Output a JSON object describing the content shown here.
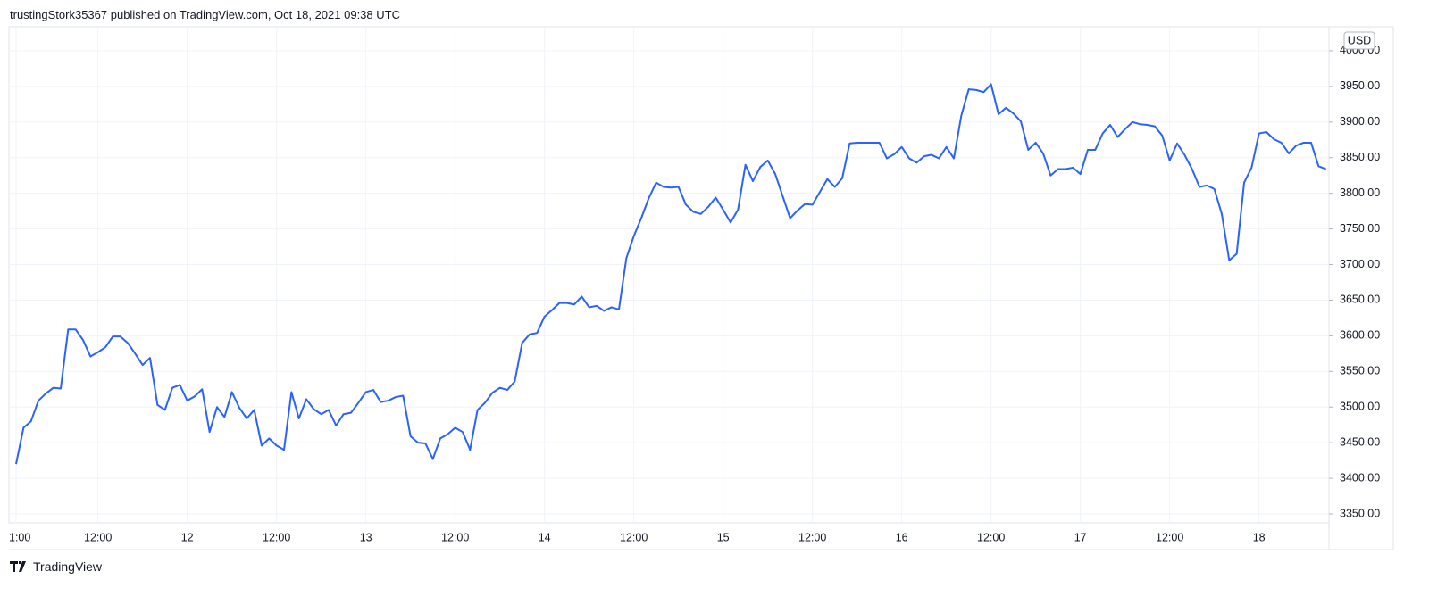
{
  "header": {
    "title": "trustingStork35367 published on TradingView.com, Oct 18, 2021 09:38 UTC"
  },
  "chart_data": {
    "type": "line",
    "unit": "USD",
    "color": "#2962ff",
    "grid": true,
    "categories": [
      "1:00",
      null,
      null,
      null,
      null,
      null,
      null,
      null,
      null,
      null,
      null,
      "12:00",
      null,
      null,
      null,
      null,
      null,
      null,
      null,
      null,
      null,
      null,
      null,
      "12",
      null,
      null,
      null,
      null,
      null,
      null,
      null,
      null,
      null,
      null,
      null,
      "12:00",
      null,
      null,
      null,
      null,
      null,
      null,
      null,
      null,
      null,
      null,
      null,
      "13",
      null,
      null,
      null,
      null,
      null,
      null,
      null,
      null,
      null,
      null,
      null,
      "12:00",
      null,
      null,
      null,
      null,
      null,
      null,
      null,
      null,
      null,
      null,
      null,
      "14",
      null,
      null,
      null,
      null,
      null,
      null,
      null,
      null,
      null,
      null,
      null,
      "12:00",
      null,
      null,
      null,
      null,
      null,
      null,
      null,
      null,
      null,
      null,
      null,
      "15",
      null,
      null,
      null,
      null,
      null,
      null,
      null,
      null,
      null,
      null,
      null,
      "12:00",
      null,
      null,
      null,
      null,
      null,
      null,
      null,
      null,
      null,
      null,
      null,
      "16",
      null,
      null,
      null,
      null,
      null,
      null,
      null,
      null,
      null,
      null,
      null,
      "12:00",
      null,
      null,
      null,
      null,
      null,
      null,
      null,
      null,
      null,
      null,
      null,
      "17",
      null,
      null,
      null,
      null,
      null,
      null,
      null,
      null,
      null,
      null,
      null,
      "12:00",
      null,
      null,
      null,
      null,
      null,
      null,
      null,
      null,
      null,
      null,
      null,
      "18",
      null,
      null,
      null,
      null,
      null,
      null,
      null,
      null,
      null
    ],
    "values": [
      3420,
      3471,
      3480,
      3509,
      3519,
      3527,
      3526,
      3609,
      3609,
      3594,
      3571,
      3577,
      3584,
      3599,
      3599,
      3590,
      3575,
      3559,
      3569,
      3503,
      3496,
      3527,
      3531,
      3509,
      3515,
      3525,
      3465,
      3500,
      3486,
      3521,
      3499,
      3484,
      3496,
      3446,
      3456,
      3446,
      3440,
      3521,
      3484,
      3511,
      3497,
      3490,
      3496,
      3474,
      3490,
      3492,
      3506,
      3521,
      3524,
      3507,
      3509,
      3514,
      3516,
      3459,
      3450,
      3449,
      3427,
      3456,
      3462,
      3471,
      3465,
      3440,
      3496,
      3506,
      3520,
      3527,
      3524,
      3536,
      3590,
      3602,
      3604,
      3627,
      3636,
      3646,
      3646,
      3644,
      3655,
      3640,
      3642,
      3635,
      3640,
      3637,
      3709,
      3740,
      3765,
      3793,
      3815,
      3809,
      3808,
      3809,
      3784,
      3774,
      3771,
      3781,
      3794,
      3777,
      3759,
      3777,
      3840,
      3817,
      3837,
      3846,
      3827,
      3796,
      3765,
      3776,
      3785,
      3784,
      3802,
      3820,
      3809,
      3821,
      3870,
      3871,
      3871,
      3871,
      3871,
      3849,
      3855,
      3865,
      3849,
      3843,
      3852,
      3854,
      3849,
      3865,
      3849,
      3909,
      3946,
      3945,
      3942,
      3953,
      3911,
      3920,
      3912,
      3901,
      3861,
      3871,
      3856,
      3825,
      3834,
      3834,
      3836,
      3827,
      3861,
      3861,
      3884,
      3896,
      3879,
      3890,
      3900,
      3897,
      3896,
      3894,
      3881,
      3846,
      3870,
      3854,
      3834,
      3809,
      3811,
      3806,
      3771,
      3706,
      3715,
      3815,
      3836,
      3884,
      3886,
      3876,
      3871,
      3856,
      3867,
      3871,
      3871,
      3838,
      3834
    ],
    "ylim": [
      3337.5,
      4033.75
    ],
    "yticks": [
      {
        "value": 3350,
        "label": "3350.00"
      },
      {
        "value": 3400,
        "label": "3400.00"
      },
      {
        "value": 3450,
        "label": "3450.00"
      },
      {
        "value": 3500,
        "label": "3500.00"
      },
      {
        "value": 3550,
        "label": "3550.00"
      },
      {
        "value": 3600,
        "label": "3600.00"
      },
      {
        "value": 3650,
        "label": "3650.00"
      },
      {
        "value": 3700,
        "label": "3700.00"
      },
      {
        "value": 3750,
        "label": "3750.00"
      },
      {
        "value": 3800,
        "label": "3800.00"
      },
      {
        "value": 3850,
        "label": "3850.00"
      },
      {
        "value": 3900,
        "label": "3900.00"
      },
      {
        "value": 3950,
        "label": "3950.00"
      },
      {
        "value": 4000,
        "label": "4000.00"
      }
    ]
  },
  "footer": {
    "brand": "TradingView"
  }
}
